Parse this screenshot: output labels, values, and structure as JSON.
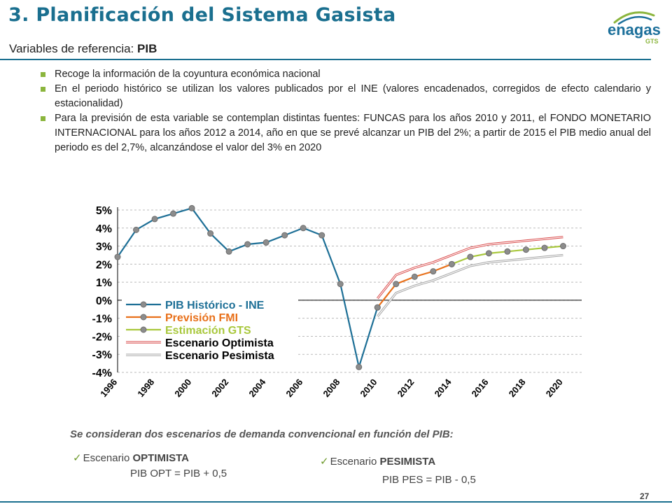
{
  "header": {
    "title": "3. Planificación del Sistema Gasista",
    "subtitle_prefix": "Variables de referencia:",
    "subtitle_bold": "PIB"
  },
  "logo": {
    "text": "enagas",
    "subtext": "GTS",
    "colors": {
      "blue": "#1b6f9a",
      "green": "#8bb53d"
    }
  },
  "bullets": [
    "Recoge la información de la coyuntura económica nacional",
    "En el periodo histórico se utilizan los valores publicados por el INE (valores encadenados, corregidos de efecto calendario y estacionalidad)",
    "Para la previsión de esta variable se contemplan distintas fuentes: FUNCAS para los años 2010 y 2011, el FONDO MONETARIO INTERNACIONAL para los años 2012 a 2014, año en que se prevé alcanzar un PIB del 2%; a partir de 2015 el PIB medio anual del periodo es del 2,7%, alcanzándose el valor del 3% en 2020"
  ],
  "chart_data": {
    "type": "line",
    "x_tick_labels": [
      "1996",
      "1998",
      "2000",
      "2002",
      "2004",
      "2006",
      "2008",
      "2010",
      "2012",
      "2014",
      "2016",
      "2018",
      "2020"
    ],
    "y_tick_labels": [
      "5%",
      "4%",
      "3%",
      "2%",
      "1%",
      "0%",
      "-1%",
      "-2%",
      "-3%",
      "-4%"
    ],
    "ylim": [
      -4,
      5
    ],
    "xlim": [
      1996,
      2021
    ],
    "grid": "horizontal dashed",
    "legend_position": "inside-bottom-left",
    "series": [
      {
        "name": "PIB Histórico - INE",
        "color": "#1d6f96",
        "markers": true,
        "points": [
          [
            1996,
            2.4
          ],
          [
            1997,
            3.9
          ],
          [
            1998,
            4.5
          ],
          [
            1999,
            4.8
          ],
          [
            2000,
            5.1
          ],
          [
            2001,
            3.7
          ],
          [
            2002,
            2.7
          ],
          [
            2003,
            3.1
          ],
          [
            2004,
            3.2
          ],
          [
            2005,
            3.6
          ],
          [
            2006,
            4.0
          ],
          [
            2007,
            3.6
          ],
          [
            2008,
            0.9
          ],
          [
            2009,
            -3.7
          ],
          [
            2010,
            -0.4
          ]
        ]
      },
      {
        "name": "Previsión FMI",
        "color": "#e8701a",
        "markers": true,
        "points": [
          [
            2010,
            -0.4
          ],
          [
            2011,
            0.9
          ],
          [
            2012,
            1.3
          ],
          [
            2013,
            1.6
          ],
          [
            2014,
            2.0
          ]
        ]
      },
      {
        "name": "Estimación GTS",
        "color": "#a9c83d",
        "markers": true,
        "points": [
          [
            2014,
            2.0
          ],
          [
            2015,
            2.4
          ],
          [
            2016,
            2.6
          ],
          [
            2017,
            2.7
          ],
          [
            2018,
            2.8
          ],
          [
            2019,
            2.9
          ],
          [
            2020,
            3.0
          ]
        ]
      },
      {
        "name": "Escenario Optimista",
        "color": "#d94a4a",
        "markers": false,
        "points": [
          [
            2010,
            0.1
          ],
          [
            2011,
            1.4
          ],
          [
            2012,
            1.8
          ],
          [
            2013,
            2.1
          ],
          [
            2014,
            2.5
          ],
          [
            2015,
            2.9
          ],
          [
            2016,
            3.1
          ],
          [
            2017,
            3.2
          ],
          [
            2018,
            3.3
          ],
          [
            2019,
            3.4
          ],
          [
            2020,
            3.5
          ]
        ]
      },
      {
        "name": "Escenario Pesimista",
        "color": "#a6a6a6",
        "markers": false,
        "points": [
          [
            2010,
            -0.9
          ],
          [
            2011,
            0.4
          ],
          [
            2012,
            0.8
          ],
          [
            2013,
            1.1
          ],
          [
            2014,
            1.5
          ],
          [
            2015,
            1.9
          ],
          [
            2016,
            2.1
          ],
          [
            2017,
            2.2
          ],
          [
            2018,
            2.3
          ],
          [
            2019,
            2.4
          ],
          [
            2020,
            2.5
          ]
        ]
      }
    ]
  },
  "scenarios": {
    "heading": "Se consideran dos escenarios de demanda convencional en función del PIB:",
    "optimista": {
      "prefix": "Escenario",
      "name": "OPTIMISTA",
      "formula": "PIB OPT = PIB + 0,5"
    },
    "pesimista": {
      "prefix": "Escenario",
      "name": "PESIMISTA",
      "formula": "PIB PES = PIB - 0,5"
    }
  },
  "footer": {
    "page": "27"
  }
}
